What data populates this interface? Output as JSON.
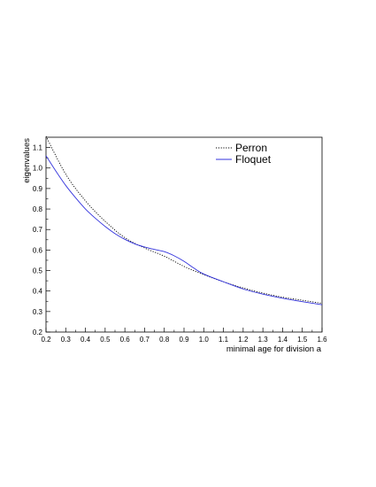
{
  "chart_data": {
    "type": "line",
    "xlabel": "minimal age for division a",
    "ylabel": "eigenvalues",
    "xlim": [
      0.2,
      1.6
    ],
    "ylim": [
      0.2,
      1.15
    ],
    "xticks": [
      "0.2",
      "0.3",
      "0.4",
      "0.5",
      "0.6",
      "0.7",
      "0.8",
      "0.9",
      "1.0",
      "1.1",
      "1.2",
      "1.3",
      "1.4",
      "1.5",
      "1.6"
    ],
    "yticks": [
      "0.2",
      "0.3",
      "0.4",
      "0.5",
      "0.6",
      "0.7",
      "0.8",
      "0.9",
      "1.0",
      "1.1"
    ],
    "grid": false,
    "legend_position": "top-right",
    "series": [
      {
        "name": "Perron",
        "style": "dotted",
        "color": "#000000",
        "x": [
          0.2,
          0.3,
          0.4,
          0.5,
          0.6,
          0.7,
          0.8,
          0.9,
          1.0,
          1.1,
          1.2,
          1.3,
          1.4,
          1.5,
          1.6
        ],
        "y": [
          1.155,
          0.97,
          0.84,
          0.74,
          0.66,
          0.61,
          0.57,
          0.52,
          0.48,
          0.445,
          0.415,
          0.39,
          0.37,
          0.355,
          0.34
        ]
      },
      {
        "name": "Floquet",
        "style": "solid",
        "color": "#3333dd",
        "x": [
          0.2,
          0.25,
          0.3,
          0.35,
          0.4,
          0.45,
          0.5,
          0.55,
          0.6,
          0.65,
          0.7,
          0.75,
          0.8,
          0.85,
          0.9,
          0.95,
          1.0,
          1.1,
          1.2,
          1.3,
          1.4,
          1.5,
          1.6
        ],
        "y": [
          1.06,
          0.985,
          0.915,
          0.855,
          0.8,
          0.755,
          0.715,
          0.68,
          0.652,
          0.63,
          0.615,
          0.603,
          0.592,
          0.572,
          0.545,
          0.512,
          0.483,
          0.445,
          0.41,
          0.385,
          0.365,
          0.348,
          0.333
        ]
      }
    ]
  }
}
